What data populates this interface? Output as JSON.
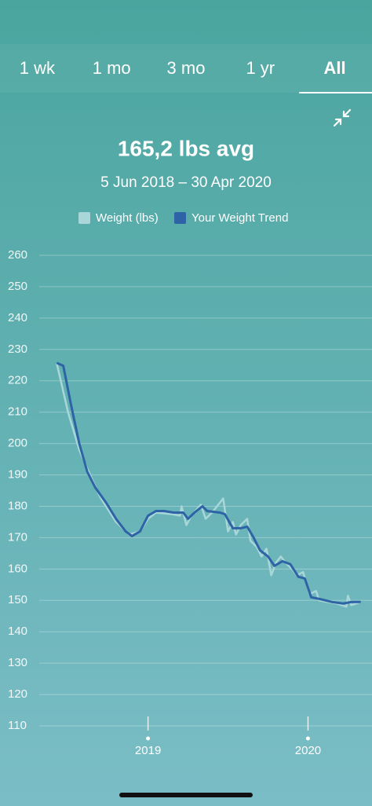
{
  "tabs": {
    "items": [
      "1 wk",
      "1 mo",
      "3 mo",
      "1 yr",
      "All"
    ],
    "selected": 4
  },
  "chart_data": {
    "type": "line",
    "title": "165,2 lbs avg",
    "subtitle": "5 Jun 2018 – 30 Apr 2020",
    "series": [
      {
        "name": "Weight (lbs)",
        "color": "#a9d6d8",
        "x": [
          2018.43,
          2018.5,
          2018.57,
          2018.62,
          2018.7,
          2018.8,
          2018.88,
          2018.95,
          2019.0,
          2019.05,
          2019.15,
          2019.2,
          2019.21,
          2019.24,
          2019.27,
          2019.33,
          2019.36,
          2019.4,
          2019.47,
          2019.5,
          2019.53,
          2019.55,
          2019.58,
          2019.62,
          2019.64,
          2019.68,
          2019.71,
          2019.74,
          2019.77,
          2019.8,
          2019.83,
          2019.86,
          2019.9,
          2019.93,
          2019.97,
          2020.01,
          2020.05,
          2020.07,
          2020.12,
          2020.18,
          2020.24,
          2020.25,
          2020.27,
          2020.33
        ],
        "values": [
          225.5,
          210,
          198,
          192,
          183,
          175,
          171,
          172,
          176,
          178,
          177.5,
          177,
          180,
          174,
          177,
          180.5,
          176,
          178,
          182.5,
          172,
          175,
          171,
          174,
          176,
          169,
          167,
          164,
          166.5,
          158,
          162,
          164,
          162,
          160,
          158,
          159,
          152,
          153,
          150,
          149.5,
          149,
          148,
          151.5,
          148.5,
          149.5
        ]
      },
      {
        "name": "Your Weight Trend",
        "color": "#2e63a6",
        "x": [
          2018.43,
          2018.47,
          2018.52,
          2018.57,
          2018.62,
          2018.67,
          2018.74,
          2018.8,
          2018.86,
          2018.9,
          2018.95,
          2019.0,
          2019.05,
          2019.1,
          2019.16,
          2019.22,
          2019.25,
          2019.29,
          2019.34,
          2019.37,
          2019.45,
          2019.48,
          2019.53,
          2019.58,
          2019.62,
          2019.66,
          2019.7,
          2019.75,
          2019.79,
          2019.84,
          2019.89,
          2019.94,
          2019.98,
          2020.02,
          2020.07,
          2020.15,
          2020.22,
          2020.27,
          2020.33
        ],
        "values": [
          225.7,
          224.8,
          212,
          200,
          191,
          186,
          181,
          176,
          172,
          170.5,
          172,
          177,
          178.5,
          178.5,
          178,
          178,
          176,
          178,
          180,
          178.5,
          178,
          177.5,
          173,
          173,
          173.5,
          170,
          166,
          164,
          161,
          162.5,
          161.5,
          157.5,
          157,
          151,
          150.5,
          149.5,
          149,
          149.5,
          149.5
        ]
      }
    ],
    "xlim": [
      2018.32,
      2020.4
    ],
    "xticks": [
      2019,
      2020
    ],
    "ylim": [
      110,
      260
    ],
    "yticks": [
      110,
      120,
      130,
      140,
      150,
      160,
      170,
      180,
      190,
      200,
      210,
      220,
      230,
      240,
      250,
      260
    ],
    "grid": true
  }
}
